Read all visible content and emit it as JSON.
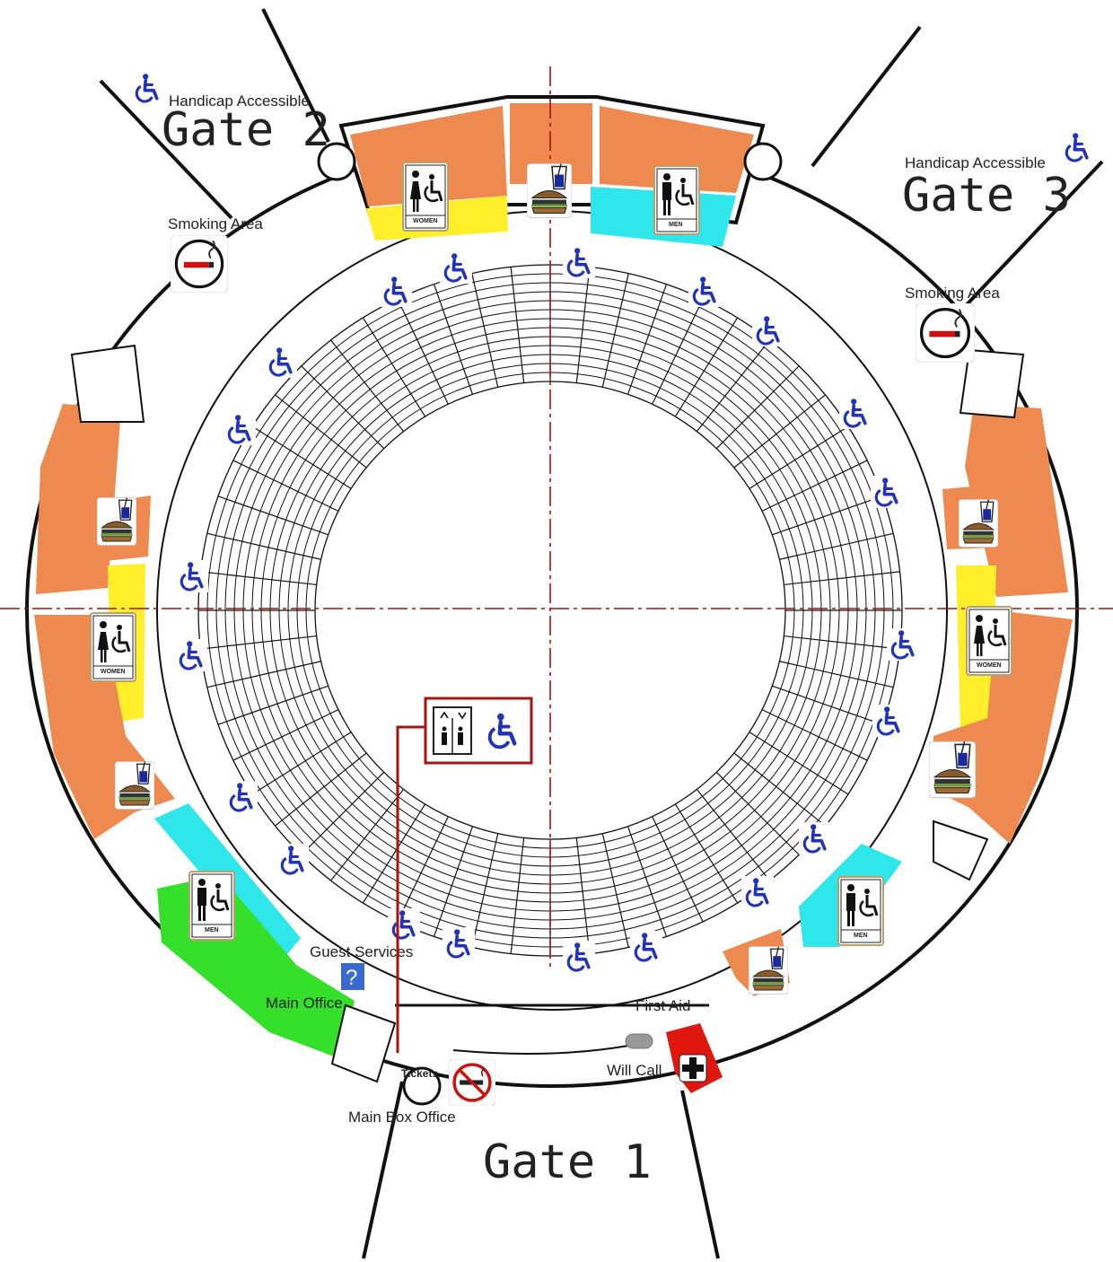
{
  "gates": {
    "gate1": "Gate 1",
    "gate2": "Gate 2",
    "gate3": "Gate 3"
  },
  "labels": {
    "handicap_accessible": "Handicap Accessible",
    "smoking_area": "Smoking Area",
    "guest_services": "Guest Services",
    "main_office": "Main Office",
    "first_aid": "First Aid",
    "will_call": "Will Call",
    "main_box_office": "Main Box Office",
    "tickets": "Tickets",
    "women": "WOMEN",
    "men": "MEN",
    "information_mark": "?"
  },
  "colors": {
    "concession": "#ee8a4f",
    "women_restroom": "#ffee2a",
    "men_restroom": "#2fe6ea",
    "offices": "#35e02a",
    "first_aid": "#e0170f",
    "accessible_blue": "#2233bb",
    "axis_line": "#aa1111",
    "elevator_box": "#aa1111"
  },
  "icons": [
    "wheelchair-icon",
    "no-smoking-icon",
    "elevator-icon",
    "food-drink-icon",
    "women-restroom-icon",
    "men-restroom-icon",
    "first-aid-icon",
    "information-icon"
  ]
}
